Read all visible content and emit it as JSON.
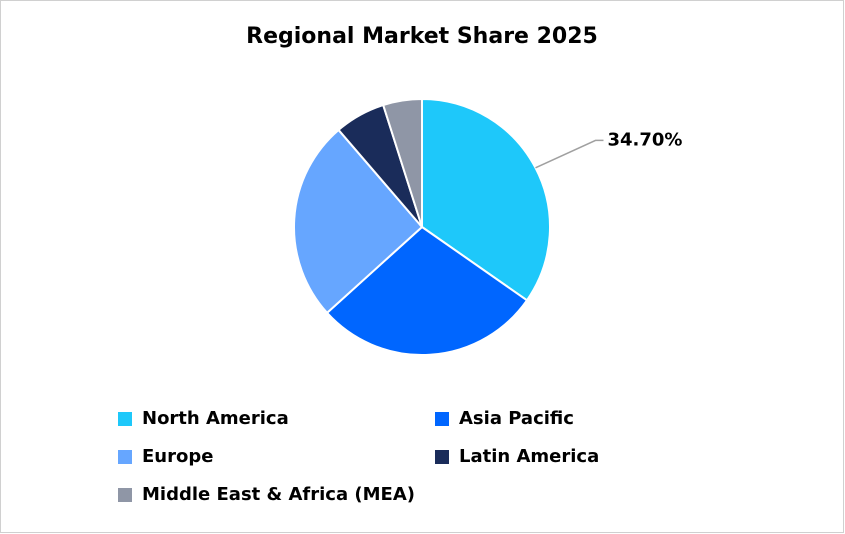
{
  "chart_data": {
    "type": "pie",
    "title": "Regional Market Share 2025",
    "categories": [
      "North America",
      "Asia Pacific",
      "Europe",
      "Latin America",
      "Middle East & Africa (MEA)"
    ],
    "values": [
      34.7,
      28.6,
      25.4,
      6.4,
      4.9
    ],
    "value_labels": [
      "34.70%",
      null,
      null,
      null,
      null
    ],
    "colors": [
      "#1ec8fa",
      "#0066ff",
      "#66a6ff",
      "#1a2c5a",
      "#8f96a6"
    ],
    "legend": "bottom"
  }
}
